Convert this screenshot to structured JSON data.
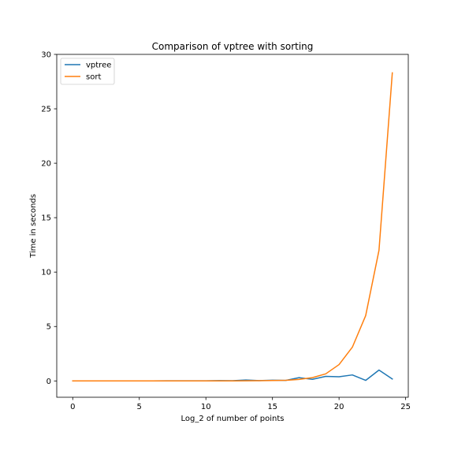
{
  "chart_data": {
    "type": "line",
    "title": "Comparison of vptree with sorting",
    "xlabel": "Log_2 of number of points",
    "ylabel": "Time in seconds",
    "xlim": [
      -1.2,
      25.2
    ],
    "ylim": [
      -1.5,
      30
    ],
    "xticks": [
      0,
      5,
      10,
      15,
      20,
      25
    ],
    "yticks": [
      0,
      5,
      10,
      15,
      20,
      25,
      30
    ],
    "grid": false,
    "legend": "top-left",
    "x": [
      0,
      1,
      2,
      3,
      4,
      5,
      6,
      7,
      8,
      9,
      10,
      11,
      12,
      13,
      14,
      15,
      16,
      17,
      18,
      19,
      20,
      21,
      22,
      23,
      24
    ],
    "series": [
      {
        "name": "vptree",
        "color": "#1f77b4",
        "values": [
          0,
          0,
          0,
          0,
          0,
          0,
          0,
          0.01,
          0.01,
          0.01,
          0.01,
          0.03,
          0.02,
          0.08,
          0.03,
          0.07,
          0.05,
          0.3,
          0.15,
          0.42,
          0.38,
          0.55,
          0.05,
          1.0,
          0.18
        ]
      },
      {
        "name": "sort",
        "color": "#ff7f0e",
        "values": [
          0,
          0,
          0,
          0,
          0,
          0,
          0,
          0,
          0,
          0,
          0,
          0,
          0,
          0.01,
          0.02,
          0.04,
          0.06,
          0.14,
          0.3,
          0.65,
          1.5,
          3.1,
          6.0,
          12.0,
          28.3
        ]
      }
    ]
  }
}
